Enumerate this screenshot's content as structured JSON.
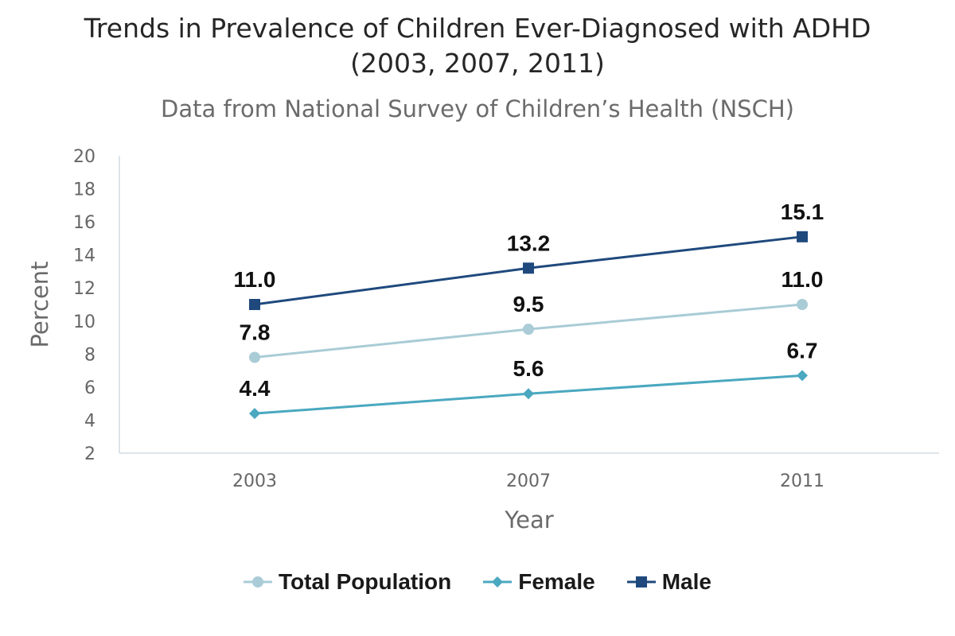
{
  "chart_data": {
    "type": "line",
    "title_line1": "Trends in Prevalence of Children Ever-Diagnosed with ADHD",
    "title_line2": "(2003, 2007, 2011)",
    "subtitle": "Data from National Survey of Children’s Health (NSCH)",
    "xlabel": "Year",
    "ylabel": "Percent",
    "categories": [
      "2003",
      "2007",
      "2011"
    ],
    "ylim": [
      2,
      20
    ],
    "yticks": [
      2,
      4,
      6,
      8,
      10,
      12,
      14,
      16,
      18,
      20
    ],
    "grid": false,
    "legend_position": "bottom",
    "series": [
      {
        "name": "Total Population",
        "values": [
          7.8,
          9.5,
          11.0
        ],
        "labels": [
          "7.8",
          "9.5",
          "11.0"
        ],
        "color": "#a9ccd6",
        "marker": "circle"
      },
      {
        "name": "Female",
        "values": [
          4.4,
          5.6,
          6.7
        ],
        "labels": [
          "4.4",
          "5.6",
          "6.7"
        ],
        "color": "#4aa8c0",
        "marker": "diamond"
      },
      {
        "name": "Male",
        "values": [
          11.0,
          13.2,
          15.1
        ],
        "labels": [
          "11.0",
          "13.2",
          "15.1"
        ],
        "color": "#1f497d",
        "marker": "square"
      }
    ]
  }
}
